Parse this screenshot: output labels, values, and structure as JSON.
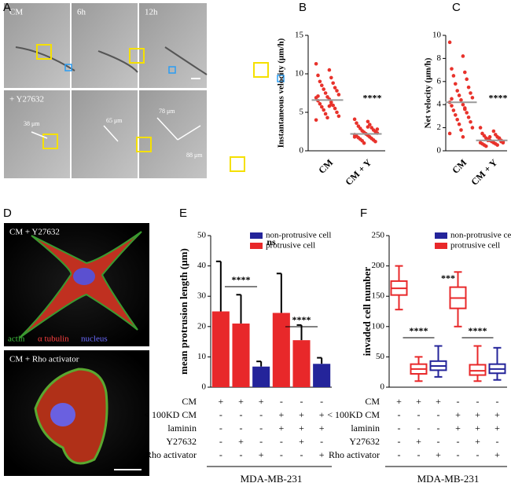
{
  "panel_labels": [
    "A",
    "B",
    "C",
    "D",
    "E",
    "F"
  ],
  "panel_a": {
    "time_labels": [
      "CM",
      "6h",
      "12h"
    ],
    "treatment_label": "+ Y27632",
    "distances": [
      "38 μm",
      "65 μm",
      "78 μm",
      "88 μm"
    ]
  },
  "panel_d": {
    "top_label": "CM + Y27632",
    "stain_labels": [
      "actin",
      "α tubulin",
      "nucleus"
    ],
    "bottom_label": "CM + Rho activator"
  },
  "chart_data": [
    {
      "type": "strip",
      "ylabel": "Instantaneous velocity (μm/h)",
      "categories": [
        "CM",
        "CM + Y"
      ],
      "points": [
        [
          11.3,
          10.5,
          9.8,
          9.5,
          9.0,
          8.8,
          8.5,
          8.2,
          8.0,
          7.8,
          7.5,
          7.3,
          7.0,
          6.9,
          6.7,
          6.5,
          6.3,
          6.1,
          5.9,
          5.7,
          5.5,
          5.3,
          5.0,
          4.8,
          4.5,
          4.3,
          4.0,
          5.8,
          7.1,
          6.0
        ],
        [
          4.1,
          3.8,
          3.6,
          3.4,
          3.2,
          3.0,
          2.9,
          2.7,
          2.6,
          2.5,
          2.4,
          2.3,
          2.2,
          2.1,
          2.0,
          1.9,
          1.8,
          1.7,
          1.6,
          1.5,
          1.4,
          1.3,
          1.2,
          1.0,
          2.8,
          2.2,
          1.8,
          3.1
        ]
      ],
      "means": [
        6.6,
        2.2
      ],
      "color": "#e8322b",
      "mean_color": "#999999",
      "annotation": "****",
      "ylim": [
        0,
        15
      ],
      "yticks": [
        0,
        5,
        10,
        15
      ]
    },
    {
      "type": "strip",
      "ylabel": "Net velocity (μm/h)",
      "categories": [
        "CM",
        "CM + Y"
      ],
      "points": [
        [
          9.4,
          8.2,
          7.1,
          6.8,
          6.5,
          6.2,
          5.8,
          5.5,
          5.2,
          5.0,
          4.8,
          4.6,
          4.4,
          4.2,
          4.0,
          3.9,
          3.7,
          3.5,
          3.3,
          3.1,
          2.9,
          2.7,
          2.5,
          2.3,
          2.0,
          1.8,
          1.5,
          1.2,
          4.5,
          3.6
        ],
        [
          2.0,
          1.7,
          1.5,
          1.4,
          1.3,
          1.2,
          1.1,
          1.0,
          1.0,
          0.9,
          0.9,
          0.8,
          0.8,
          0.7,
          0.7,
          0.6,
          0.6,
          0.5,
          0.5,
          0.4,
          1.1,
          0.9,
          0.8,
          1.2,
          0.7
        ]
      ],
      "means": [
        4.2,
        0.9
      ],
      "color": "#e8322b",
      "mean_color": "#999999",
      "annotation": "****",
      "ylim": [
        0,
        10
      ],
      "yticks": [
        0,
        2,
        4,
        6,
        8,
        10
      ]
    },
    {
      "type": "bar",
      "ylabel": "mean protrusion length (μm)",
      "series": [
        {
          "name": "non-protrusive cell",
          "color": "#24249a",
          "values": [
            null,
            null,
            6.8,
            null,
            null,
            7.7
          ],
          "errors": [
            null,
            null,
            1.7,
            null,
            null,
            2.0
          ]
        },
        {
          "name": "protrusive cell",
          "color": "#e8282a",
          "values": [
            25,
            21,
            null,
            24.5,
            15.5,
            null
          ],
          "errors": [
            16.5,
            9.5,
            null,
            13,
            5,
            null
          ]
        }
      ],
      "annotations": [
        "****",
        "ns",
        "****"
      ],
      "ylim": [
        0,
        50
      ],
      "yticks": [
        0,
        10,
        20,
        30,
        40,
        50
      ],
      "conditions": {
        "rows": [
          "CM",
          "< 100KD CM",
          "laminin",
          "Y27632",
          "Rho activator"
        ],
        "cells": [
          [
            "+",
            "+",
            "+",
            "-",
            "-",
            "-"
          ],
          [
            "-",
            "-",
            "-",
            "+",
            "+",
            "+"
          ],
          [
            "-",
            "-",
            "-",
            "+",
            "+",
            "+"
          ],
          [
            "-",
            "+",
            "-",
            "-",
            "+",
            "-"
          ],
          [
            "-",
            "-",
            "+",
            "-",
            "-",
            "+"
          ]
        ]
      },
      "cell_line": "MDA-MB-231"
    },
    {
      "type": "box",
      "ylabel": "invaded cell number",
      "series": [
        {
          "name": "non-protrusive cell",
          "color": "#24249a",
          "boxes": [
            null,
            null,
            [
              17,
              28,
              35,
              43,
              68
            ],
            null,
            null,
            [
              12,
              23,
              30,
              38,
              65
            ]
          ]
        },
        {
          "name": "protrusive cell",
          "color": "#e8282a",
          "boxes": [
            [
              128,
              152,
              163,
              175,
              200
            ],
            [
              10,
              22,
              30,
              38,
              50
            ],
            null,
            [
              100,
              130,
              147,
              165,
              190
            ],
            [
              10,
              20,
              27,
              37,
              68
            ],
            null
          ]
        }
      ],
      "annotations": [
        "****",
        "***",
        "****"
      ],
      "ylim": [
        0,
        250
      ],
      "yticks": [
        0,
        50,
        100,
        150,
        200,
        250
      ],
      "conditions": {
        "rows": [
          "CM",
          "< 100KD CM",
          "laminin",
          "Y27632",
          "Rho activator"
        ],
        "cells": [
          [
            "+",
            "+",
            "+",
            "-",
            "-",
            "-"
          ],
          [
            "-",
            "-",
            "-",
            "+",
            "+",
            "+"
          ],
          [
            "-",
            "-",
            "-",
            "+",
            "+",
            "+"
          ],
          [
            "-",
            "+",
            "-",
            "-",
            "+",
            "-"
          ],
          [
            "-",
            "-",
            "+",
            "-",
            "-",
            "+"
          ]
        ]
      },
      "cell_line": "MDA-MB-231"
    }
  ]
}
